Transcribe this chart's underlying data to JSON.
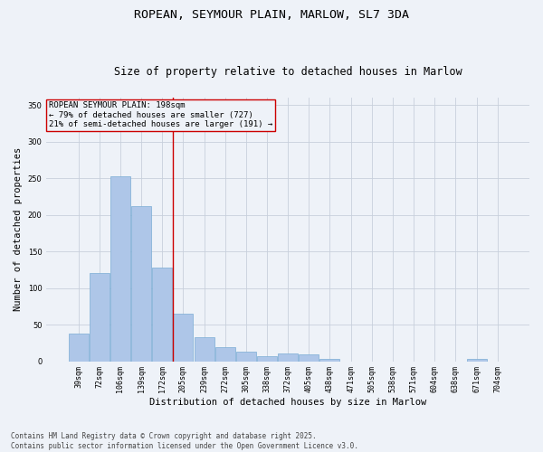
{
  "title_line1": "ROPEAN, SEYMOUR PLAIN, MARLOW, SL7 3DA",
  "title_line2": "Size of property relative to detached houses in Marlow",
  "xlabel": "Distribution of detached houses by size in Marlow",
  "ylabel": "Number of detached properties",
  "categories": [
    "39sqm",
    "72sqm",
    "106sqm",
    "139sqm",
    "172sqm",
    "205sqm",
    "239sqm",
    "272sqm",
    "305sqm",
    "338sqm",
    "372sqm",
    "405sqm",
    "438sqm",
    "471sqm",
    "505sqm",
    "538sqm",
    "571sqm",
    "604sqm",
    "638sqm",
    "671sqm",
    "704sqm"
  ],
  "values": [
    38,
    120,
    252,
    212,
    128,
    65,
    33,
    19,
    13,
    7,
    10,
    9,
    3,
    0,
    0,
    0,
    0,
    0,
    0,
    3,
    0
  ],
  "bar_color": "#aec6e8",
  "bar_edge_color": "#7aadd4",
  "vline_x": 4.5,
  "vline_color": "#cc0000",
  "annotation_text": "ROPEAN SEYMOUR PLAIN: 198sqm\n← 79% of detached houses are smaller (727)\n21% of semi-detached houses are larger (191) →",
  "annotation_box_color": "#cc0000",
  "ylim": [
    0,
    360
  ],
  "yticks": [
    0,
    50,
    100,
    150,
    200,
    250,
    300,
    350
  ],
  "grid_color": "#c8d0dc",
  "background_color": "#eef2f8",
  "footer": "Contains HM Land Registry data © Crown copyright and database right 2025.\nContains public sector information licensed under the Open Government Licence v3.0.",
  "title_fontsize": 9.5,
  "subtitle_fontsize": 8.5,
  "tick_fontsize": 6,
  "label_fontsize": 7.5,
  "annotation_fontsize": 6.5,
  "footer_fontsize": 5.5
}
